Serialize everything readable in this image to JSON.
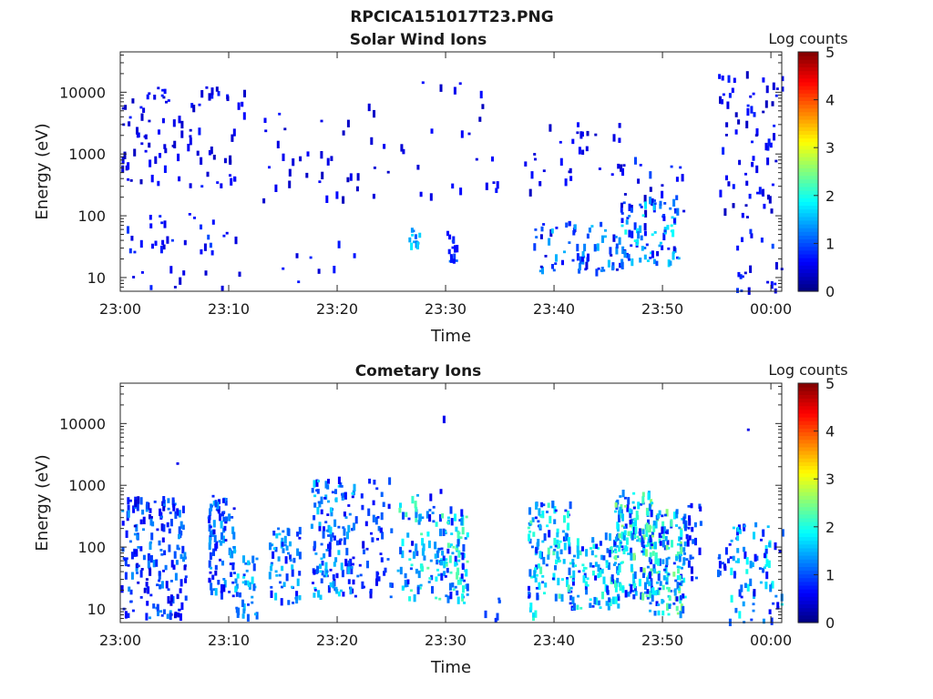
{
  "suptitle": "RPCICA151017T23.PNG",
  "colorbar": {
    "label": "Log counts",
    "ticks": [
      "0",
      "1",
      "2",
      "3",
      "4",
      "5"
    ],
    "range": [
      0,
      5
    ]
  },
  "chart_data": [
    {
      "type": "heatmap",
      "title": "Solar Wind Ions",
      "xlabel": "Time",
      "ylabel": "Energy (eV)",
      "yscale": "log",
      "ylim": [
        6,
        45000
      ],
      "xlim": [
        "23:00",
        "00:01"
      ],
      "xticks": [
        "23:00",
        "23:10",
        "23:20",
        "23:30",
        "23:40",
        "23:50",
        "00:00"
      ],
      "yticks": [
        {
          "label": "10",
          "value": 10
        },
        {
          "label": "100",
          "value": 100
        },
        {
          "label": "1000",
          "value": 1000
        },
        {
          "label": "10000",
          "value": 10000
        }
      ],
      "clusters": [
        {
          "t0": 0.0,
          "t1": 11.5,
          "e0": 300,
          "e1": 12000,
          "n": 95,
          "lc": [
            0.3,
            0.8
          ]
        },
        {
          "t0": 0.5,
          "t1": 11.0,
          "e0": 25,
          "e1": 110,
          "n": 30,
          "lc": [
            0.4,
            1.0
          ]
        },
        {
          "t0": 1.0,
          "t1": 11.0,
          "e0": 6,
          "e1": 14,
          "n": 10,
          "lc": [
            0.4,
            0.8
          ]
        },
        {
          "t0": 13.0,
          "t1": 22.0,
          "e0": 150,
          "e1": 5000,
          "n": 30,
          "lc": [
            0.3,
            0.7
          ]
        },
        {
          "t0": 14.0,
          "t1": 22.0,
          "e0": 8,
          "e1": 35,
          "n": 8,
          "lc": [
            0.4,
            0.8
          ]
        },
        {
          "t0": 22.0,
          "t1": 35.0,
          "e0": 150,
          "e1": 15000,
          "n": 30,
          "lc": [
            0.3,
            0.7
          ]
        },
        {
          "t0": 26.5,
          "t1": 27.5,
          "e0": 30,
          "e1": 80,
          "n": 12,
          "lc": [
            1.0,
            1.8
          ]
        },
        {
          "t0": 30.0,
          "t1": 31.0,
          "e0": 18,
          "e1": 60,
          "n": 14,
          "lc": [
            0.6,
            1.2
          ]
        },
        {
          "t0": 37.0,
          "t1": 46.0,
          "e0": 200,
          "e1": 3000,
          "n": 30,
          "lc": [
            0.3,
            0.7
          ]
        },
        {
          "t0": 38.0,
          "t1": 46.0,
          "e0": 12,
          "e1": 80,
          "n": 70,
          "lc": [
            0.4,
            1.6
          ]
        },
        {
          "t0": 46.0,
          "t1": 52.0,
          "e0": 100,
          "e1": 800,
          "n": 25,
          "lc": [
            0.3,
            1.0
          ]
        },
        {
          "t0": 46.0,
          "t1": 51.5,
          "e0": 15,
          "e1": 200,
          "n": 90,
          "lc": [
            0.4,
            2.0
          ]
        },
        {
          "t0": 55.0,
          "t1": 61.0,
          "e0": 90,
          "e1": 20000,
          "n": 70,
          "lc": [
            0.3,
            0.8
          ]
        },
        {
          "t0": 56.5,
          "t1": 61.0,
          "e0": 6,
          "e1": 60,
          "n": 20,
          "lc": [
            0.4,
            1.0
          ]
        }
      ]
    },
    {
      "type": "heatmap",
      "title": "Cometary Ions",
      "xlabel": "Time",
      "ylabel": "Energy (eV)",
      "yscale": "log",
      "ylim": [
        6,
        45000
      ],
      "xlim": [
        "23:00",
        "00:01"
      ],
      "xticks": [
        "23:00",
        "23:10",
        "23:20",
        "23:30",
        "23:40",
        "23:50",
        "00:00"
      ],
      "yticks": [
        {
          "label": "10",
          "value": 10
        },
        {
          "label": "100",
          "value": 100
        },
        {
          "label": "1000",
          "value": 1000
        },
        {
          "label": "10000",
          "value": 10000
        }
      ],
      "clusters": [
        {
          "t0": 0.0,
          "t1": 6.0,
          "e0": 7,
          "e1": 600,
          "n": 180,
          "lc": [
            0.4,
            1.4
          ]
        },
        {
          "t0": 5.0,
          "t1": 6.0,
          "e0": 2000,
          "e1": 3000,
          "n": 1,
          "lc": [
            0.5,
            0.7
          ]
        },
        {
          "t0": 8.0,
          "t1": 10.5,
          "e0": 15,
          "e1": 700,
          "n": 90,
          "lc": [
            0.5,
            1.6
          ]
        },
        {
          "t0": 10.5,
          "t1": 12.5,
          "e0": 7,
          "e1": 70,
          "n": 40,
          "lc": [
            0.8,
            1.8
          ]
        },
        {
          "t0": 13.5,
          "t1": 16.5,
          "e0": 12,
          "e1": 200,
          "n": 60,
          "lc": [
            0.6,
            1.7
          ]
        },
        {
          "t0": 17.5,
          "t1": 21.5,
          "e0": 15,
          "e1": 1200,
          "n": 140,
          "lc": [
            0.5,
            1.8
          ]
        },
        {
          "t0": 21.5,
          "t1": 25.0,
          "e0": 15,
          "e1": 1200,
          "n": 50,
          "lc": [
            0.5,
            1.2
          ]
        },
        {
          "t0": 25.5,
          "t1": 29.5,
          "e0": 12,
          "e1": 800,
          "n": 90,
          "lc": [
            0.5,
            2.4
          ]
        },
        {
          "t0": 29.5,
          "t1": 32.0,
          "e0": 12,
          "e1": 400,
          "n": 90,
          "lc": [
            0.6,
            2.4
          ]
        },
        {
          "t0": 29.5,
          "t1": 30.3,
          "e0": 10000,
          "e1": 12000,
          "n": 1,
          "lc": [
            0.5,
            0.6
          ]
        },
        {
          "t0": 33.5,
          "t1": 35.0,
          "e0": 6,
          "e1": 16,
          "n": 6,
          "lc": [
            0.8,
            1.2
          ]
        },
        {
          "t0": 37.5,
          "t1": 38.5,
          "e0": 6,
          "e1": 60,
          "n": 10,
          "lc": [
            1.5,
            2.2
          ]
        },
        {
          "t0": 37.5,
          "t1": 41.5,
          "e0": 15,
          "e1": 500,
          "n": 110,
          "lc": [
            0.5,
            2.3
          ]
        },
        {
          "t0": 41.0,
          "t1": 46.0,
          "e0": 10,
          "e1": 150,
          "n": 110,
          "lc": [
            0.6,
            2.3
          ]
        },
        {
          "t0": 45.5,
          "t1": 49.0,
          "e0": 15,
          "e1": 800,
          "n": 170,
          "lc": [
            0.6,
            2.6
          ]
        },
        {
          "t0": 48.5,
          "t1": 52.0,
          "e0": 8,
          "e1": 400,
          "n": 160,
          "lc": [
            0.6,
            2.6
          ]
        },
        {
          "t0": 52.0,
          "t1": 53.5,
          "e0": 30,
          "e1": 500,
          "n": 25,
          "lc": [
            0.5,
            1.2
          ]
        },
        {
          "t0": 55.0,
          "t1": 56.0,
          "e0": 30,
          "e1": 120,
          "n": 10,
          "lc": [
            0.5,
            1.2
          ]
        },
        {
          "t0": 56.0,
          "t1": 61.0,
          "e0": 6,
          "e1": 250,
          "n": 80,
          "lc": [
            0.5,
            2.0
          ]
        },
        {
          "t0": 57.0,
          "t1": 58.0,
          "e0": 7000,
          "e1": 8000,
          "n": 1,
          "lc": [
            0.5,
            0.6
          ]
        }
      ]
    }
  ]
}
